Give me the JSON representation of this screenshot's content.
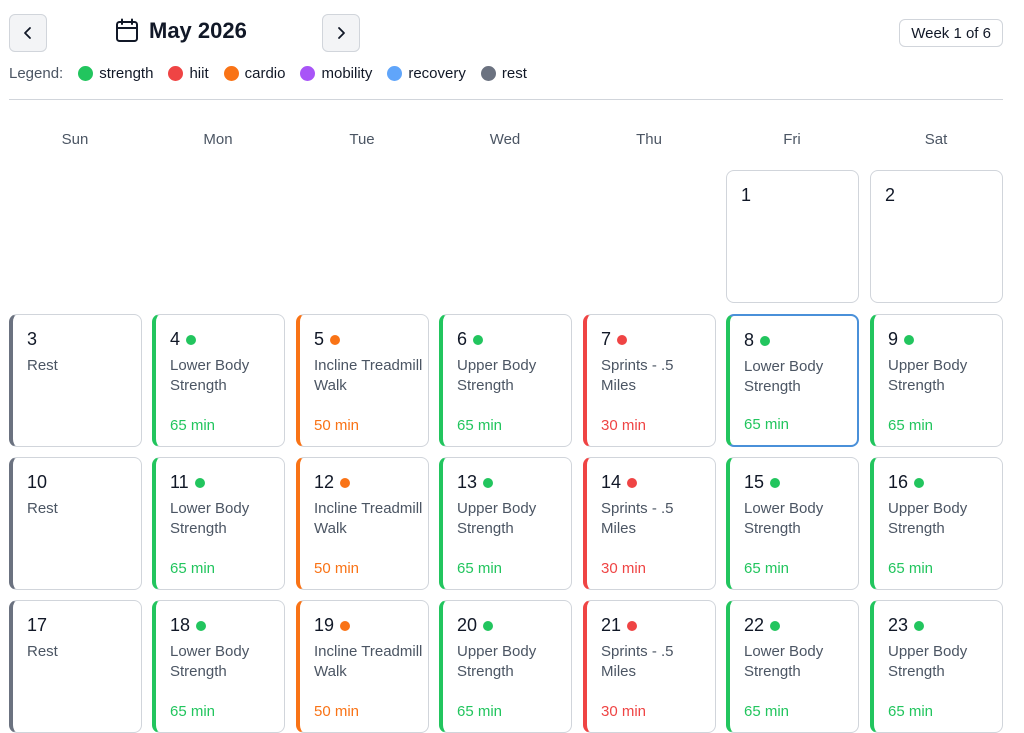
{
  "header": {
    "month_label": "May 2026",
    "prev_label": "‹",
    "next_label": "›",
    "week_label": "Week 1 of 6"
  },
  "legend": {
    "title": "Legend:",
    "items": [
      {
        "label": "strength",
        "color": "#22c55e"
      },
      {
        "label": "hiit",
        "color": "#ef4444"
      },
      {
        "label": "cardio",
        "color": "#f97316"
      },
      {
        "label": "mobility",
        "color": "#a855f7"
      },
      {
        "label": "recovery",
        "color": "#60a5fa"
      },
      {
        "label": "rest",
        "color": "#6b7280"
      }
    ]
  },
  "colors": {
    "strength": "#22c55e",
    "hiit": "#ef4444",
    "cardio": "#f97316",
    "rest": "#6b7280",
    "selected": "#4a90d9"
  },
  "weekdays": [
    "Sun",
    "Mon",
    "Tue",
    "Wed",
    "Thu",
    "Fri",
    "Sat"
  ],
  "weeks": [
    [
      null,
      null,
      null,
      null,
      null,
      {
        "day": "1"
      },
      {
        "day": "2"
      }
    ],
    [
      {
        "day": "3",
        "type": "rest",
        "name": "Rest"
      },
      {
        "day": "4",
        "type": "strength",
        "name": "Lower Body Strength",
        "duration": "65 min"
      },
      {
        "day": "5",
        "type": "cardio",
        "name": "Incline Treadmill Walk",
        "duration": "50 min"
      },
      {
        "day": "6",
        "type": "strength",
        "name": "Upper Body Strength",
        "duration": "65 min"
      },
      {
        "day": "7",
        "type": "hiit",
        "name": "Sprints - .5 Miles",
        "duration": "30 min"
      },
      {
        "day": "8",
        "type": "strength",
        "name": "Lower Body Strength",
        "duration": "65 min",
        "selected": true
      },
      {
        "day": "9",
        "type": "strength",
        "name": "Upper Body Strength",
        "duration": "65 min"
      }
    ],
    [
      {
        "day": "10",
        "type": "rest",
        "name": "Rest"
      },
      {
        "day": "11",
        "type": "strength",
        "name": "Lower Body Strength",
        "duration": "65 min"
      },
      {
        "day": "12",
        "type": "cardio",
        "name": "Incline Treadmill Walk",
        "duration": "50 min"
      },
      {
        "day": "13",
        "type": "strength",
        "name": "Upper Body Strength",
        "duration": "65 min"
      },
      {
        "day": "14",
        "type": "hiit",
        "name": "Sprints - .5 Miles",
        "duration": "30 min"
      },
      {
        "day": "15",
        "type": "strength",
        "name": "Lower Body Strength",
        "duration": "65 min"
      },
      {
        "day": "16",
        "type": "strength",
        "name": "Upper Body Strength",
        "duration": "65 min"
      }
    ],
    [
      {
        "day": "17",
        "type": "rest",
        "name": "Rest"
      },
      {
        "day": "18",
        "type": "strength",
        "name": "Lower Body Strength",
        "duration": "65 min"
      },
      {
        "day": "19",
        "type": "cardio",
        "name": "Incline Treadmill Walk",
        "duration": "50 min"
      },
      {
        "day": "20",
        "type": "strength",
        "name": "Upper Body Strength",
        "duration": "65 min"
      },
      {
        "day": "21",
        "type": "hiit",
        "name": "Sprints - .5 Miles",
        "duration": "30 min"
      },
      {
        "day": "22",
        "type": "strength",
        "name": "Lower Body Strength",
        "duration": "65 min"
      },
      {
        "day": "23",
        "type": "strength",
        "name": "Upper Body Strength",
        "duration": "65 min"
      }
    ]
  ]
}
